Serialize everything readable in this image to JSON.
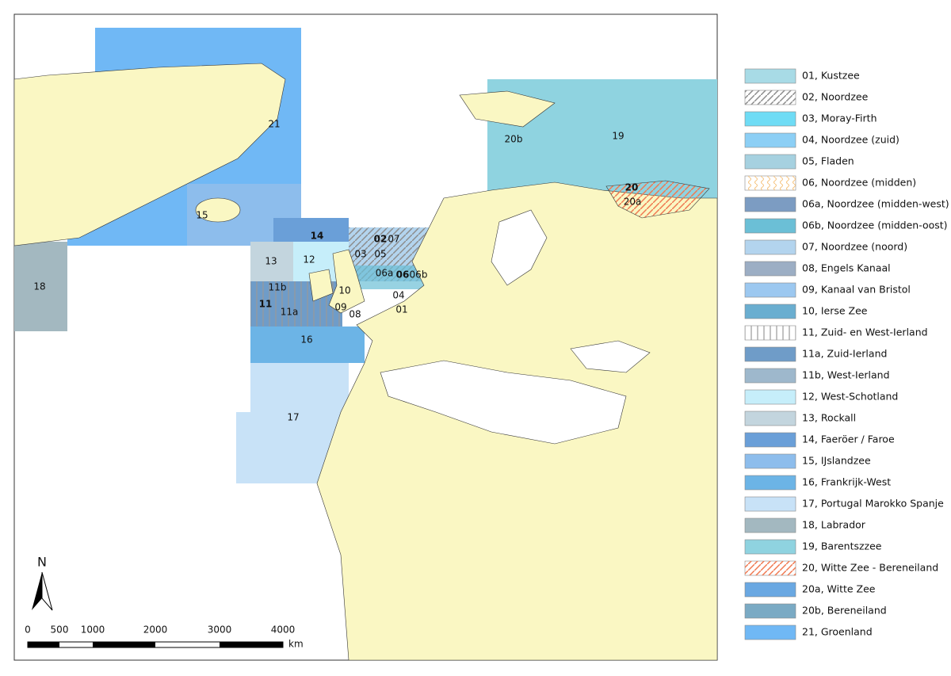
{
  "map": {
    "labels": [
      "21",
      "15",
      "14",
      "13",
      "12",
      "18",
      "11b",
      "11",
      "11a",
      "10",
      "09",
      "08",
      "16",
      "17",
      "03",
      "05",
      "02",
      "07",
      "06a",
      "06",
      "06b",
      "04",
      "01",
      "19",
      "20b",
      "20",
      "20a"
    ],
    "north": "N",
    "scale": {
      "ticks": [
        "0",
        "500",
        "1000",
        "2000",
        "3000",
        "4000"
      ],
      "unit": "km"
    }
  },
  "legend": [
    {
      "label": "01, Kustzee",
      "color": "#a8dbe6"
    },
    {
      "label": "02, Noordzee",
      "color": "#8c8c8c",
      "pattern": "diagonal"
    },
    {
      "label": "03, Moray-Firth",
      "color": "#6fdcf5"
    },
    {
      "label": "04, Noordzee (zuid)",
      "color": "#8ccff5"
    },
    {
      "label": "05, Fladen",
      "color": "#a6d1e0"
    },
    {
      "label": "06, Noordzee (midden)",
      "color": "#f5c17a",
      "pattern": "wave"
    },
    {
      "label": "06a, Noordzee (midden-west)",
      "color": "#7c9cc2"
    },
    {
      "label": "06b, Noordzee (midden-oost)",
      "color": "#6bbfd6"
    },
    {
      "label": "07, Noordzee (noord)",
      "color": "#b3d4ee"
    },
    {
      "label": "08, Engels Kanaal",
      "color": "#9caec4"
    },
    {
      "label": "09, Kanaal van Bristol",
      "color": "#9cc8f0"
    },
    {
      "label": "10, Ierse Zee",
      "color": "#6aaed0"
    },
    {
      "label": "11, Zuid- en West-Ierland",
      "color": "#999999",
      "pattern": "vertical"
    },
    {
      "label": "11a, Zuid-Ierland",
      "color": "#6f9cc8"
    },
    {
      "label": "11b, West-Ierland",
      "color": "#9eb8cc"
    },
    {
      "label": "12, West-Schotland",
      "color": "#c6eefa"
    },
    {
      "label": "13, Rockall",
      "color": "#c3d5de"
    },
    {
      "label": "14, Faeröer / Faroe",
      "color": "#6a9fd8"
    },
    {
      "label": "15, IJslandzee",
      "color": "#8dbdec"
    },
    {
      "label": "16, Frankrijk-West",
      "color": "#6cb4e6"
    },
    {
      "label": "17, Portugal Marokko Spanje",
      "color": "#c8e2f7"
    },
    {
      "label": "18, Labrador",
      "color": "#a3b8c0"
    },
    {
      "label": "19, Barentszzee",
      "color": "#8fd3e0"
    },
    {
      "label": "20, Witte Zee - Bereneiland",
      "color": "#f07850",
      "pattern": "diagonal"
    },
    {
      "label": "20a, Witte Zee",
      "color": "#6aa8e2"
    },
    {
      "label": "20b, Bereneiland",
      "color": "#7aaac4"
    },
    {
      "label": "21, Groenland",
      "color": "#70b8f5"
    }
  ]
}
